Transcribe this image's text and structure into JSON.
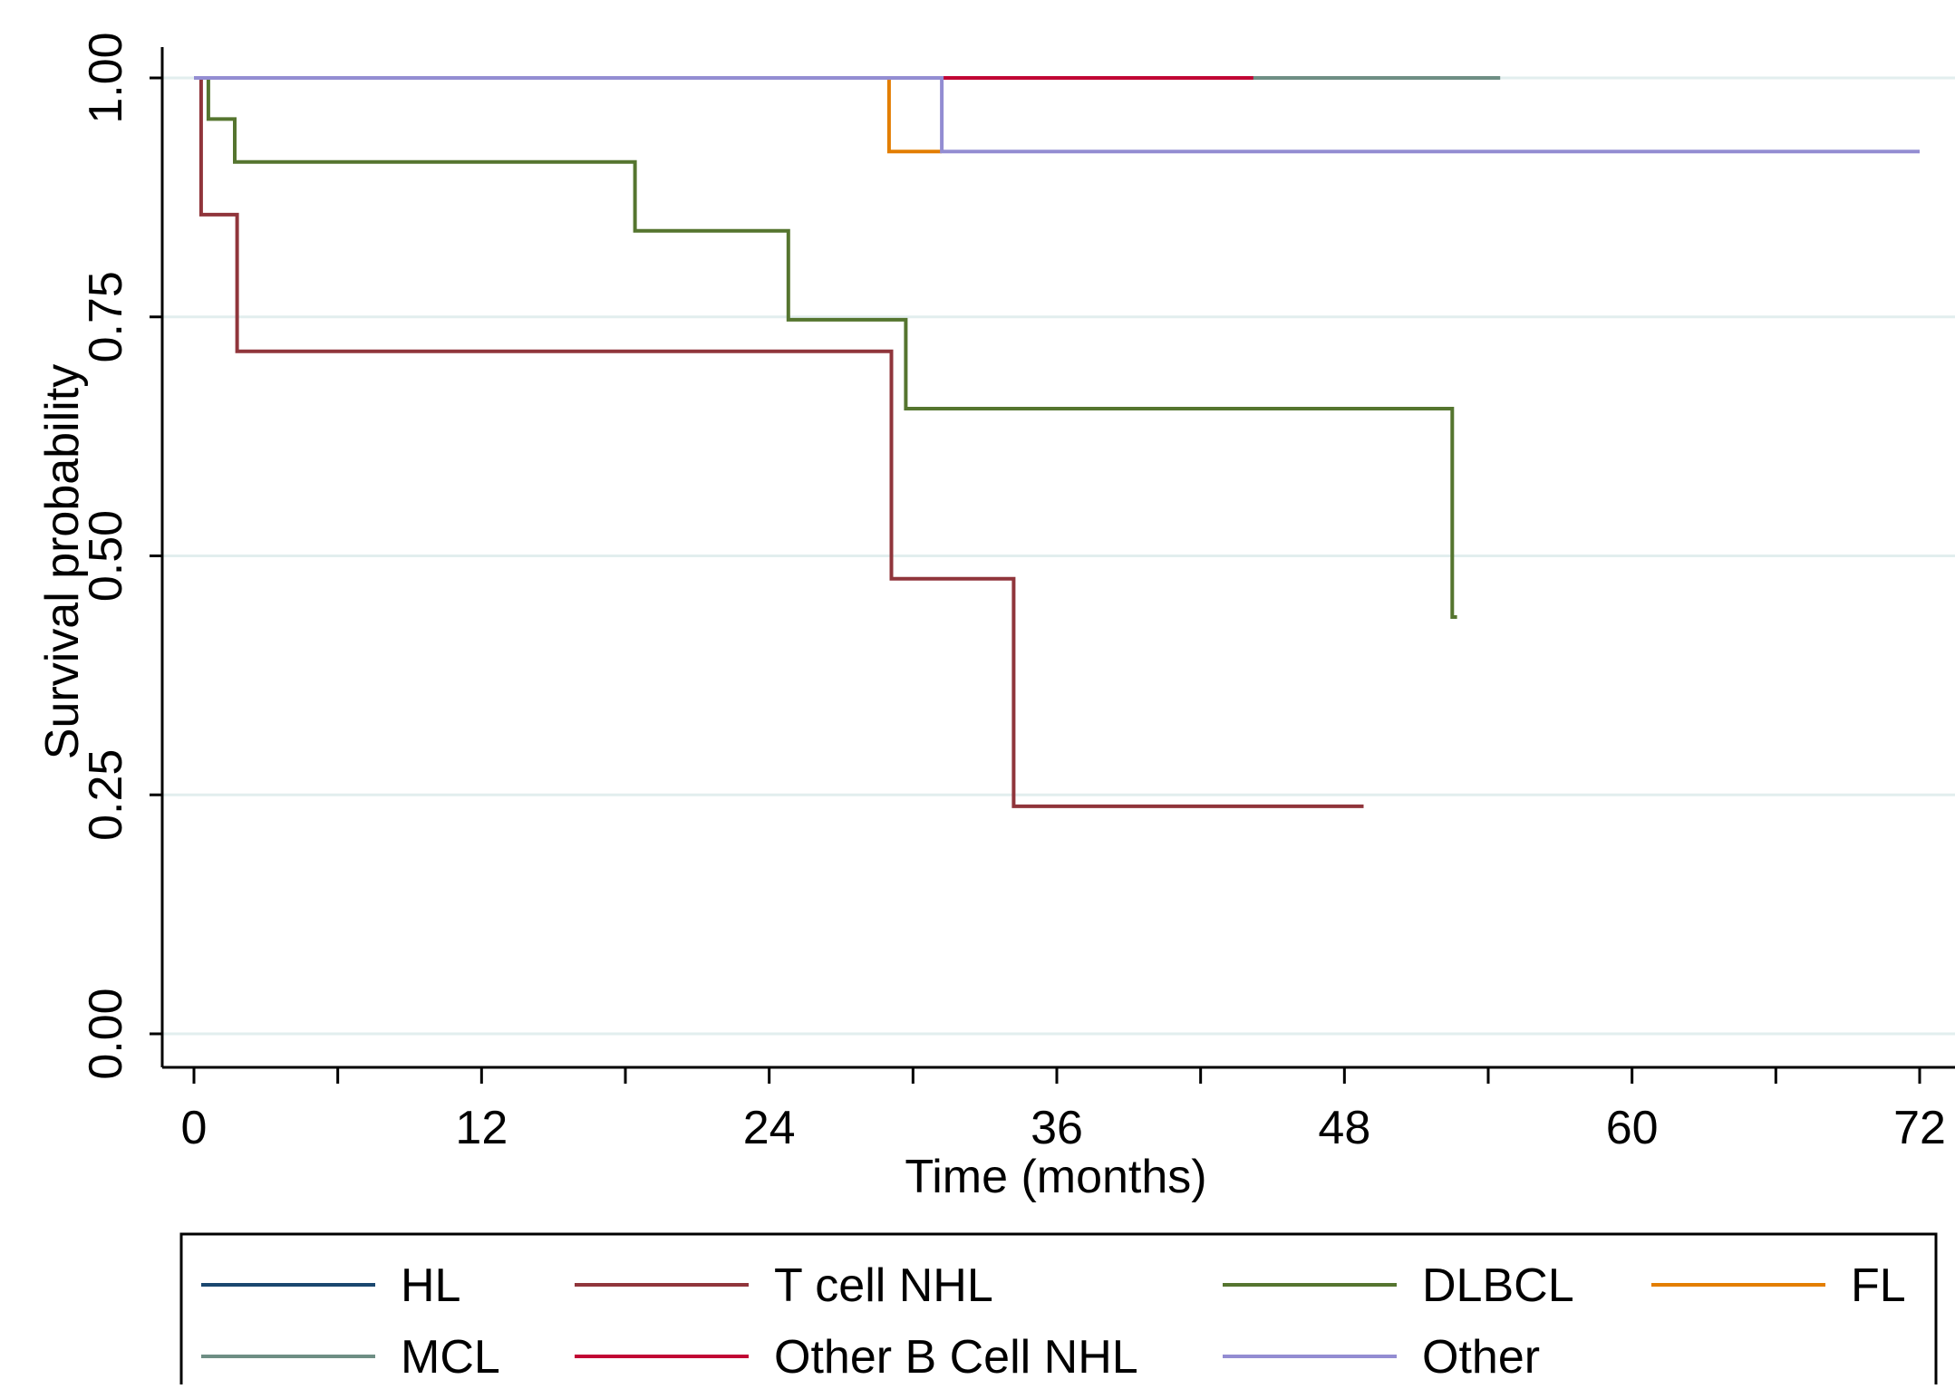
{
  "chart_data": {
    "type": "line",
    "subtype": "kaplan-meier step",
    "title": "",
    "xlabel": "Time (months)",
    "ylabel": "Survival probability",
    "xlim": [
      0,
      72
    ],
    "ylim": [
      0,
      1
    ],
    "xticks_labeled": [
      0,
      12,
      24,
      36,
      48,
      60,
      72
    ],
    "xticks_minor": [
      6,
      18,
      30,
      42,
      54,
      66
    ],
    "yticks": [
      0,
      0.25,
      0.5,
      0.75,
      1
    ],
    "ytick_labels": [
      "0.00",
      "0.25",
      "0.50",
      "0.75",
      "1.00"
    ],
    "xtick_labels": [
      "0",
      "12",
      "24",
      "36",
      "48",
      "60",
      "72"
    ],
    "grid": "horizontal",
    "grid_color": "#e2eeee",
    "legend_position": "bottom",
    "series": [
      {
        "name": "HL",
        "color": "#1a476f",
        "points": [
          [
            0,
            1
          ],
          [
            0.5,
            1
          ]
        ]
      },
      {
        "name": "T cell NHL",
        "color": "#90353b",
        "points": [
          [
            0,
            1
          ],
          [
            0.3,
            1
          ],
          [
            0.3,
            0.857
          ],
          [
            1.8,
            0.857
          ],
          [
            1.8,
            0.714
          ],
          [
            29.1,
            0.714
          ],
          [
            29.1,
            0.476
          ],
          [
            34.2,
            0.476
          ],
          [
            34.2,
            0.238
          ],
          [
            48.8,
            0.238
          ]
        ]
      },
      {
        "name": "DLBCL",
        "color": "#55752f",
        "points": [
          [
            0,
            1
          ],
          [
            0.6,
            1
          ],
          [
            0.6,
            0.957
          ],
          [
            1.7,
            0.957
          ],
          [
            1.7,
            0.912
          ],
          [
            18.4,
            0.912
          ],
          [
            18.4,
            0.84
          ],
          [
            24.8,
            0.84
          ],
          [
            24.8,
            0.747
          ],
          [
            29.7,
            0.747
          ],
          [
            29.7,
            0.654
          ],
          [
            52.5,
            0.654
          ],
          [
            52.5,
            0.436
          ],
          [
            52.7,
            0.436
          ]
        ]
      },
      {
        "name": "FL",
        "color": "#e37e00",
        "points": [
          [
            0,
            1
          ],
          [
            29.0,
            1
          ],
          [
            29.0,
            0.923
          ],
          [
            31.2,
            0.923
          ]
        ]
      },
      {
        "name": "MCL",
        "color": "#6e8e84",
        "points": [
          [
            0,
            1
          ],
          [
            54.5,
            1
          ]
        ]
      },
      {
        "name": "Other B Cell NHL",
        "color": "#c10534",
        "points": [
          [
            0,
            1
          ],
          [
            44.2,
            1
          ]
        ]
      },
      {
        "name": "Other",
        "color": "#938dd2",
        "points": [
          [
            0,
            1
          ],
          [
            31.2,
            1
          ],
          [
            31.2,
            0.923
          ],
          [
            72,
            0.923
          ]
        ]
      }
    ]
  }
}
